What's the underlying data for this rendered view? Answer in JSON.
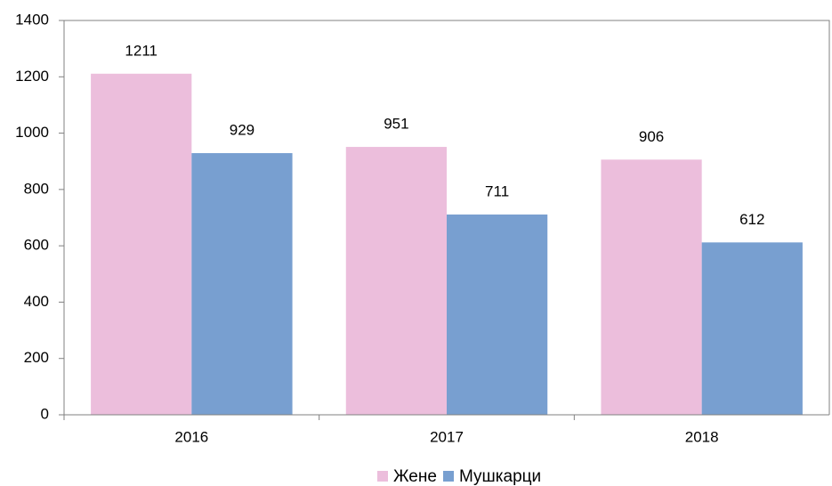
{
  "chart_data": {
    "type": "bar",
    "categories": [
      "2016",
      "2017",
      "2018"
    ],
    "series": [
      {
        "name": "Жене",
        "color": "#ecbedc",
        "values": [
          1211,
          951,
          906
        ]
      },
      {
        "name": "Мушкарци",
        "color": "#789fd0",
        "values": [
          929,
          711,
          612
        ]
      }
    ],
    "ylim": [
      0,
      1400
    ],
    "yticks": [
      0,
      200,
      400,
      600,
      800,
      1000,
      1200,
      1400
    ],
    "grid": false,
    "legend": "bottom"
  }
}
